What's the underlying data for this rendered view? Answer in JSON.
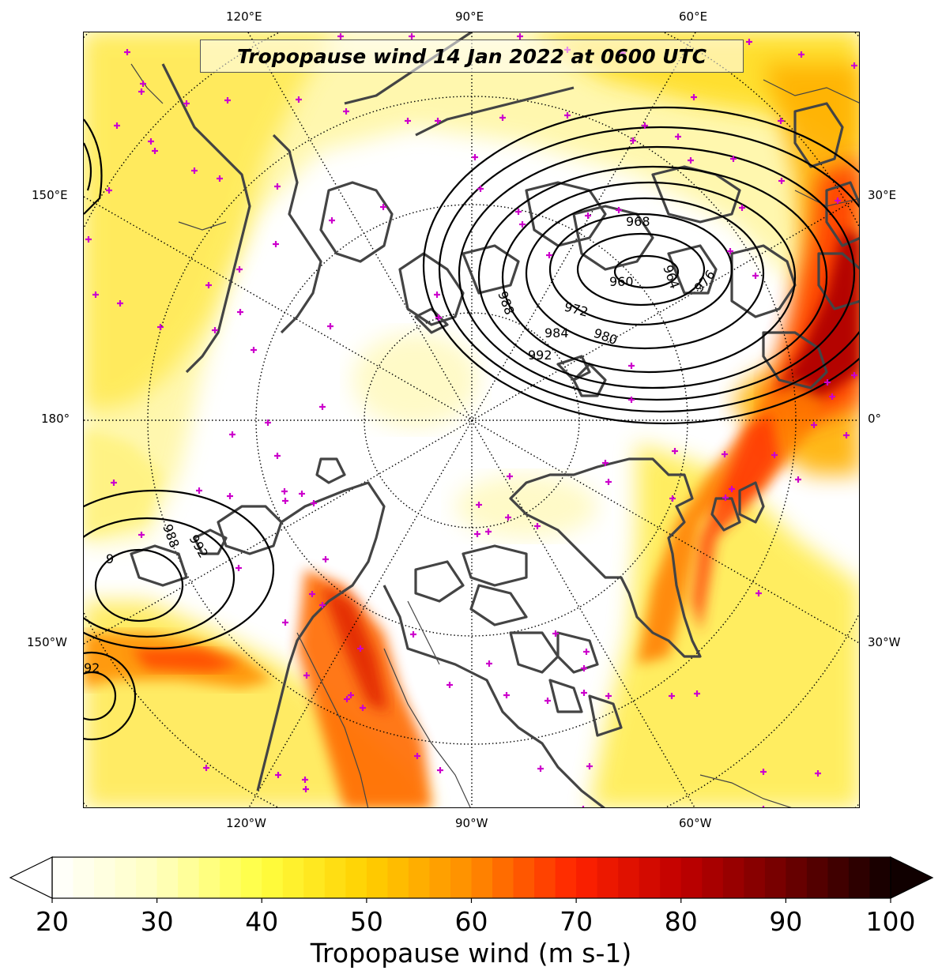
{
  "title": "Tropopause wind 14 Jan 2022 at 0600 UTC",
  "top_longitude_labels": [
    "120°E",
    "90°E",
    "60°E"
  ],
  "bottom_longitude_labels": [
    "120°W",
    "90°W",
    "60°W"
  ],
  "left_longitude_labels": [
    "150°E",
    "180°",
    "150°W"
  ],
  "right_longitude_labels": [
    "30°E",
    "0°",
    "30°W"
  ],
  "colorbar": {
    "label": "Tropopause wind (m s-1)",
    "ticks": [
      "20",
      "30",
      "40",
      "50",
      "60",
      "70",
      "80",
      "90",
      "100"
    ],
    "min": 20,
    "max": 100,
    "extend": "both",
    "colormap_stops": [
      "#ffffff",
      "#ffffc0",
      "#ffff40",
      "#ffd000",
      "#ff8c00",
      "#ff2200",
      "#c00000",
      "#700000",
      "#100000"
    ]
  },
  "isobar_labels_high": [
    "968",
    "964",
    "960",
    "972",
    "976",
    "988",
    "984",
    "980",
    "992"
  ],
  "isobar_labels_low": [
    "988",
    "992",
    "9",
    "92"
  ],
  "colors": {
    "coastline": "#444444",
    "station_marker": "#cc00cc",
    "isobar": "#000000"
  }
}
